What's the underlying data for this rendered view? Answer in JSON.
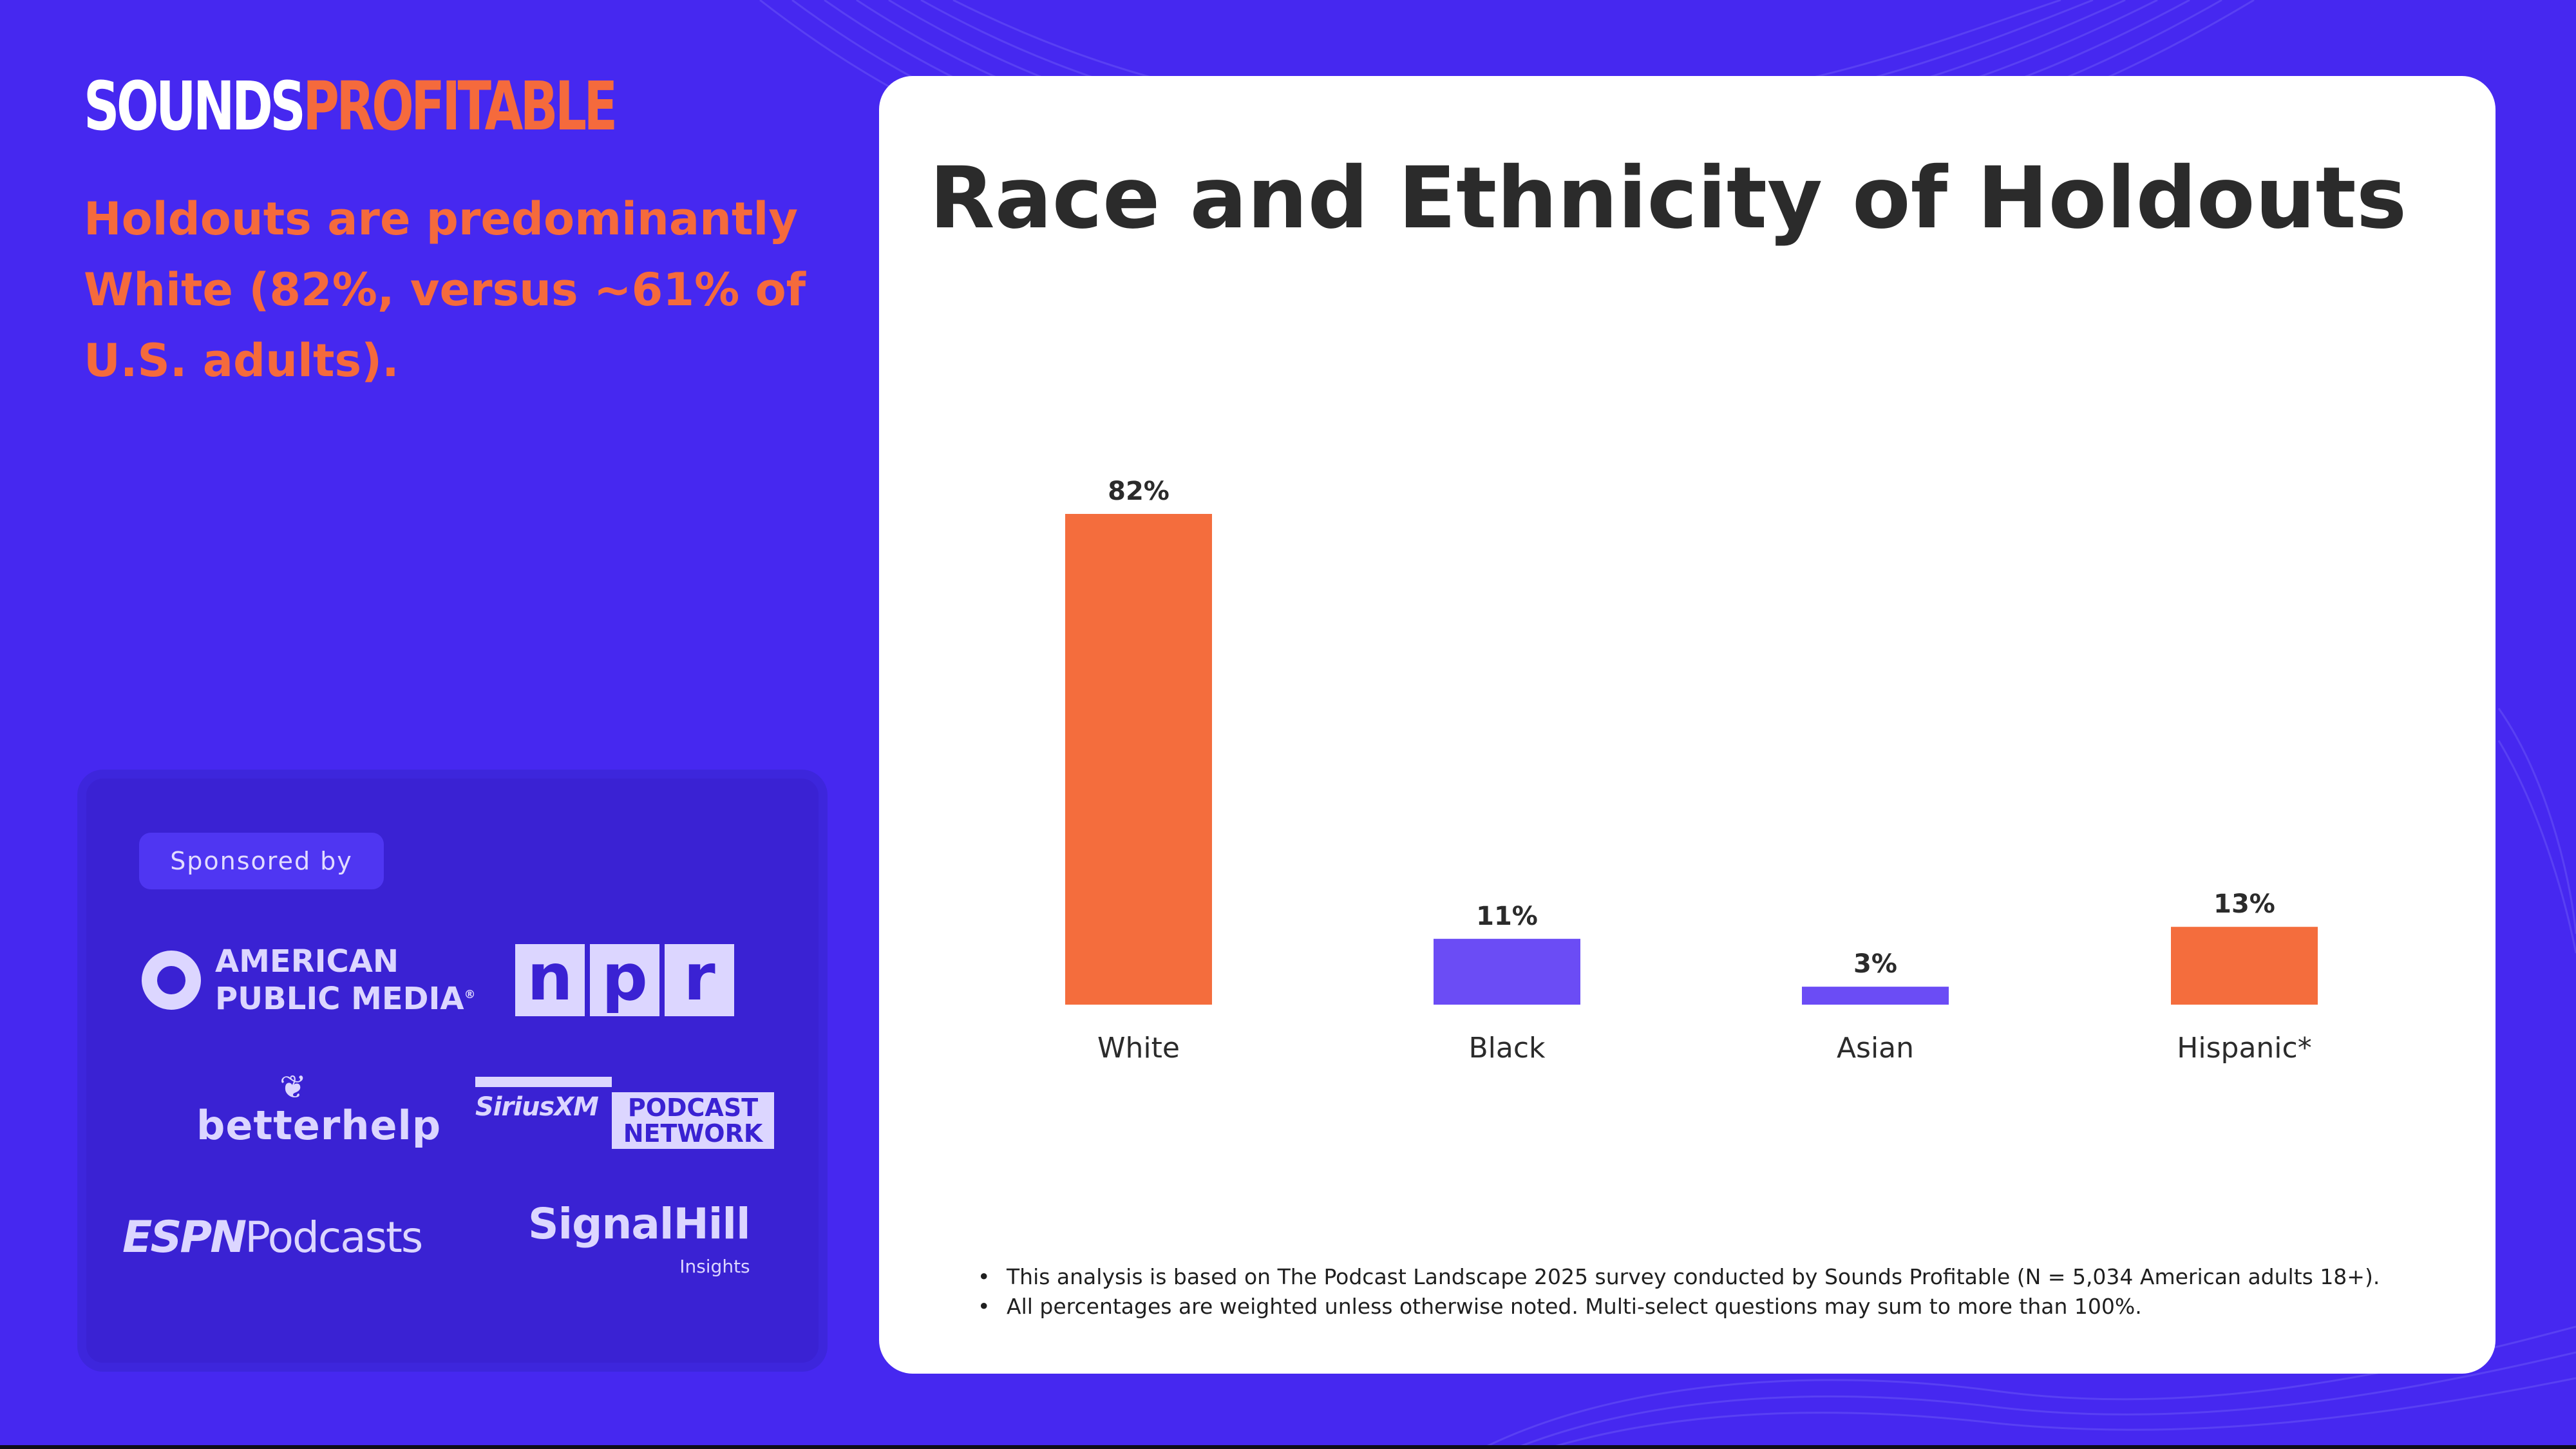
{
  "brand": {
    "part1": "SOUNDS",
    "part2": "PROFITABLE"
  },
  "headline": "Holdouts are predominantly White (82%, versus ~61% of U.S. adults).",
  "sponsor": {
    "label": "Sponsored by",
    "apm": {
      "line1": "AMERICAN",
      "line2": "PUBLIC MEDIA"
    },
    "npr": [
      "n",
      "p",
      "r"
    ],
    "betterhelp": "betterhelp",
    "siriusxm": {
      "name": "SiriusXM",
      "box1": "PODCAST",
      "box2": "NETWORK"
    },
    "espn": {
      "mark": "ESPN",
      "word": "Podcasts"
    },
    "signalhill": {
      "name": "SignalHill",
      "sub": "Insights"
    }
  },
  "chart_data": {
    "type": "bar",
    "title": "Race and Ethnicity of Holdouts",
    "xlabel": "",
    "ylabel": "",
    "categories": [
      "White",
      "Black",
      "Asian",
      "Hispanic*"
    ],
    "values": [
      82,
      11,
      3,
      13
    ],
    "value_labels": [
      "82%",
      "11%",
      "3%",
      "13%"
    ],
    "bar_colors": [
      "#f46d3d",
      "#6b4cf5",
      "#6b4cf5",
      "#f46d3d"
    ],
    "ylim": [
      0,
      82
    ],
    "grid": false,
    "legend": "none"
  },
  "footnotes": [
    "This analysis is based on The Podcast Landscape 2025 survey conducted by Sounds Profitable (N = 5,034 American adults 18+).",
    "All percentages are weighted unless otherwise noted. Multi-select questions may sum to more than 100%."
  ],
  "colors": {
    "background": "#4628f0",
    "accent": "#f56a3c",
    "card": "#ffffff"
  }
}
